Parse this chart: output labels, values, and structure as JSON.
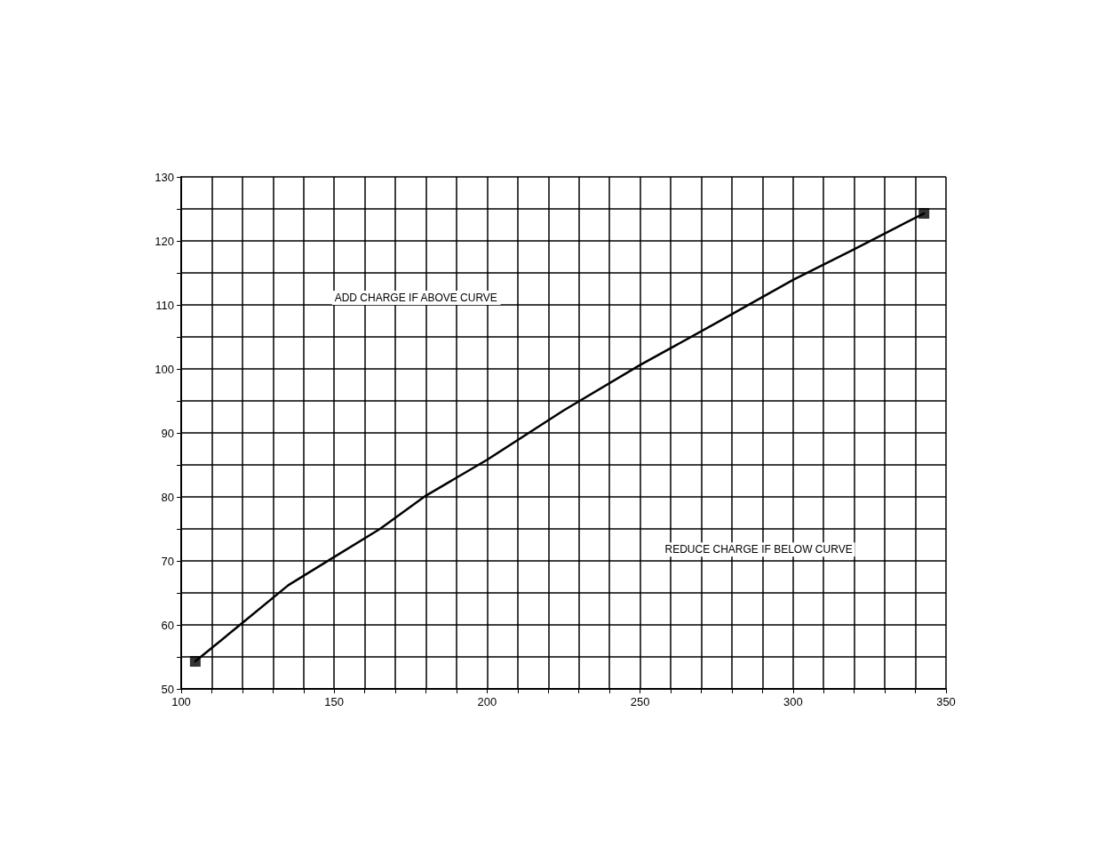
{
  "chart_data": {
    "type": "line",
    "xlim": [
      100,
      350
    ],
    "ylim": [
      50,
      130
    ],
    "xticks": [
      100,
      {
        "value": 110,
        "label": null
      },
      {
        "value": 120,
        "label": null
      },
      {
        "value": 130,
        "label": null
      },
      {
        "value": 140,
        "label": null
      },
      150,
      {
        "value": 160,
        "label": null
      },
      {
        "value": 170,
        "label": null
      },
      {
        "value": 180,
        "label": null
      },
      {
        "value": 190,
        "label": null
      },
      200,
      {
        "value": 210,
        "label": null
      },
      {
        "value": 220,
        "label": null
      },
      {
        "value": 230,
        "label": null
      },
      {
        "value": 240,
        "label": null
      },
      250,
      {
        "value": 260,
        "label": null
      },
      {
        "value": 270,
        "label": null
      },
      {
        "value": 280,
        "label": null
      },
      {
        "value": 290,
        "label": null
      },
      300,
      {
        "value": 310,
        "label": null
      },
      {
        "value": 320,
        "label": null
      },
      {
        "value": 330,
        "label": null
      },
      {
        "value": 340,
        "label": null
      },
      350
    ],
    "yticks": [
      50,
      {
        "value": 55,
        "label": null
      },
      60,
      {
        "value": 65,
        "label": null
      },
      70,
      {
        "value": 75,
        "label": null
      },
      80,
      {
        "value": 85,
        "label": null
      },
      90,
      {
        "value": 95,
        "label": null
      },
      100,
      {
        "value": 105,
        "label": null
      },
      110,
      {
        "value": 115,
        "label": null
      },
      120,
      {
        "value": 125,
        "label": null
      },
      130
    ],
    "grid": true,
    "annotations": [
      "ADD CHARGE IF ABOVE CURVE",
      "REDUCE CHARGE IF BELOW CURVE"
    ],
    "series": [
      {
        "color": "#000000",
        "marker": "none",
        "line_style": "solid",
        "x": [
          104.6,
          120,
          135,
          150,
          165,
          180,
          200,
          225,
          250,
          275,
          300,
          320,
          342.8
        ],
        "values": [
          54.3,
          60.3,
          66.2,
          70.6,
          75.0,
          80.2,
          85.8,
          93.5,
          100.6,
          107.2,
          113.9,
          118.7,
          124.3
        ]
      },
      {
        "type": "scatter",
        "color": "#000000",
        "marker": "square",
        "x": [
          104.6,
          342.8
        ],
        "values": [
          54.3,
          124.3
        ]
      }
    ]
  }
}
